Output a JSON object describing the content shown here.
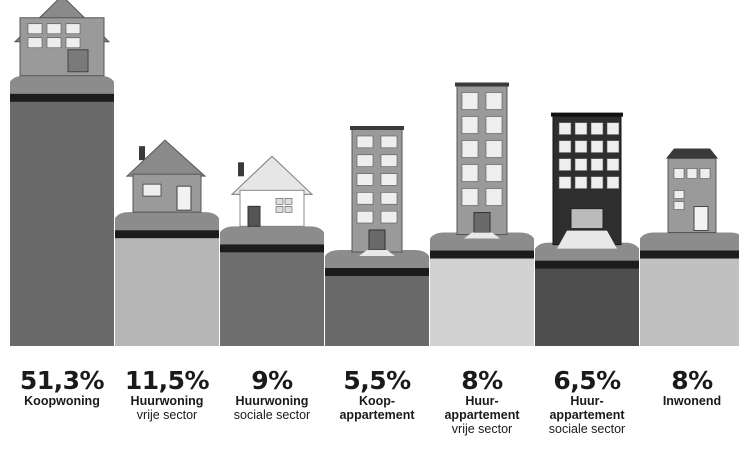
{
  "chart_data": {
    "type": "bar",
    "title": "",
    "xlabel": "",
    "ylabel": "",
    "ylim": [
      0,
      52
    ],
    "grid": false,
    "legend": "none",
    "unit": "%",
    "categories": [
      {
        "value": 51.3,
        "label": "51,3%",
        "line1": "Koopwoning",
        "line2": "",
        "line3": "",
        "building": "house",
        "fill": "#6a6a6a"
      },
      {
        "value": 11.5,
        "label": "11,5%",
        "line1": "Huurwoning",
        "line2": "vrije sector",
        "line3": "",
        "building": "house",
        "fill": "#b6b6b6"
      },
      {
        "value": 9,
        "label": "9%",
        "line1": "Huurwoning",
        "line2": "sociale sector",
        "line3": "",
        "building": "house-light",
        "fill": "#6e6e6e"
      },
      {
        "value": 5.5,
        "label": "5,5%",
        "line1": "Koop-",
        "line2": "appartement",
        "line3": "",
        "building": "tower",
        "fill": "#6a6a6a"
      },
      {
        "value": 8,
        "label": "8%",
        "line1": "Huur-",
        "line2": "appartement",
        "line3": "vrije sector",
        "building": "tower-tall",
        "fill": "#d2d2d2"
      },
      {
        "value": 6.5,
        "label": "6,5%",
        "line1": "Huur-",
        "line2": "appartement",
        "line3": "sociale sector",
        "building": "tower-dark",
        "fill": "#4e4e4e"
      },
      {
        "value": 8,
        "label": "8%",
        "line1": "Inwonend",
        "line2": "",
        "line3": "",
        "building": "small-house",
        "fill": "#c0c0c0"
      }
    ],
    "colors": {
      "grass": "#8c8c8c",
      "soil_stripe": "#1c1c1c",
      "building": "#9a9a9a",
      "window": "#eeeeee",
      "roof_dark": "#3a3a3a"
    }
  }
}
